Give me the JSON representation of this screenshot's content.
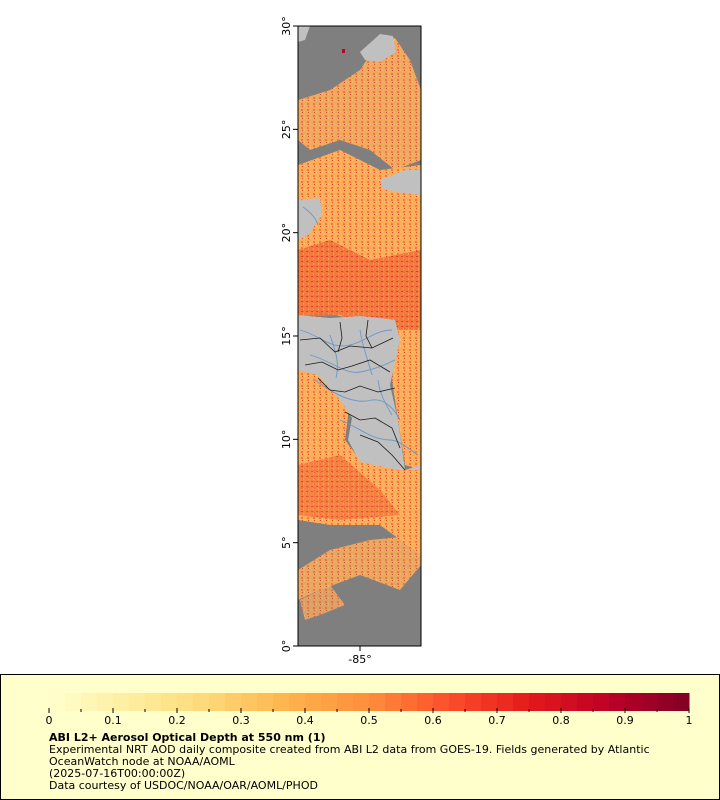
{
  "map": {
    "lat_ticks": [
      "0°",
      "5°",
      "10°",
      "15°",
      "20°",
      "25°",
      "30°"
    ],
    "lon_ticks": [
      "-85°"
    ],
    "land_color": "#c0c0c0",
    "no_data_color": "#7f7f7f",
    "border_color": "#1a1a1a",
    "river_color": "#6f96c8"
  },
  "legend": {
    "ticks": [
      "0",
      "0.1",
      "0.2",
      "0.3",
      "0.4",
      "0.5",
      "0.6",
      "0.7",
      "0.8",
      "0.9",
      "1"
    ],
    "colors": [
      "#ffffcc",
      "#ffeda0",
      "#fed976",
      "#feb24c",
      "#fd8d3c",
      "#fc4e2a",
      "#e31a1c",
      "#bd0026",
      "#800026"
    ],
    "title": "ABI L2+ Aerosol Optical Depth at 550 nm (1)",
    "line1": "Experimental NRT AOD daily composite created from ABI L2 data from GOES-19. Fields generated by Atlantic",
    "line2": "OceanWatch node at NOAA/AOML",
    "line3": "(2025-07-16T00:00:00Z)",
    "line4": "Data courtesy of USDOC/NOAA/OAR/AOML/PHOD"
  }
}
